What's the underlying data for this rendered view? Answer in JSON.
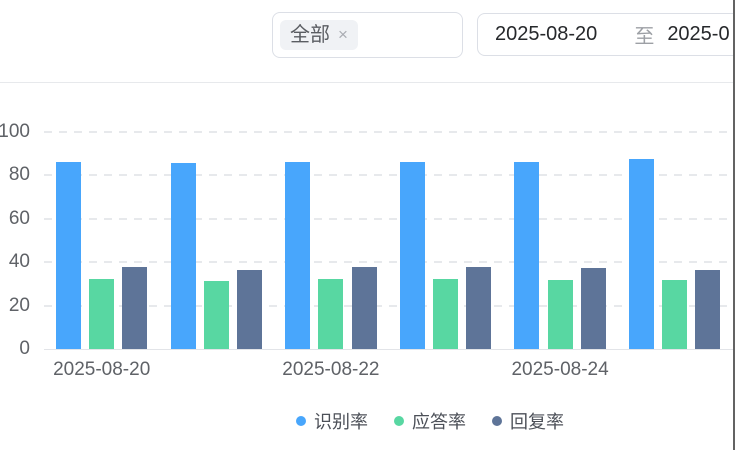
{
  "header": {
    "filter_select": {
      "tag": "全部",
      "remove_icon": "×"
    },
    "date_range": {
      "start": "2025-08-20",
      "separator": "至",
      "end_partial": "2025-0"
    }
  },
  "chart_data": {
    "type": "bar",
    "categories": [
      "2025-08-20",
      "",
      "2025-08-22",
      "",
      "2025-08-24",
      ""
    ],
    "series": [
      {
        "name": "识别率",
        "color": "#48a6fc",
        "values": [
          86.0,
          85.6,
          86.2,
          86.1,
          86.3,
          87.4
        ]
      },
      {
        "name": "应答率",
        "color": "#58d7a2",
        "values": [
          32.2,
          31.3,
          32.4,
          32.4,
          31.8,
          31.9
        ]
      },
      {
        "name": "回复率",
        "color": "#5e7498",
        "values": [
          37.6,
          36.4,
          37.6,
          37.9,
          37.4,
          36.4
        ]
      }
    ],
    "title": "",
    "xlabel": "",
    "ylabel": "",
    "ylim": [
      0,
      100
    ],
    "yticks": [
      0,
      20,
      40,
      60,
      80,
      100
    ],
    "grid": "horizontal-dashed",
    "legend_position": "bottom"
  }
}
